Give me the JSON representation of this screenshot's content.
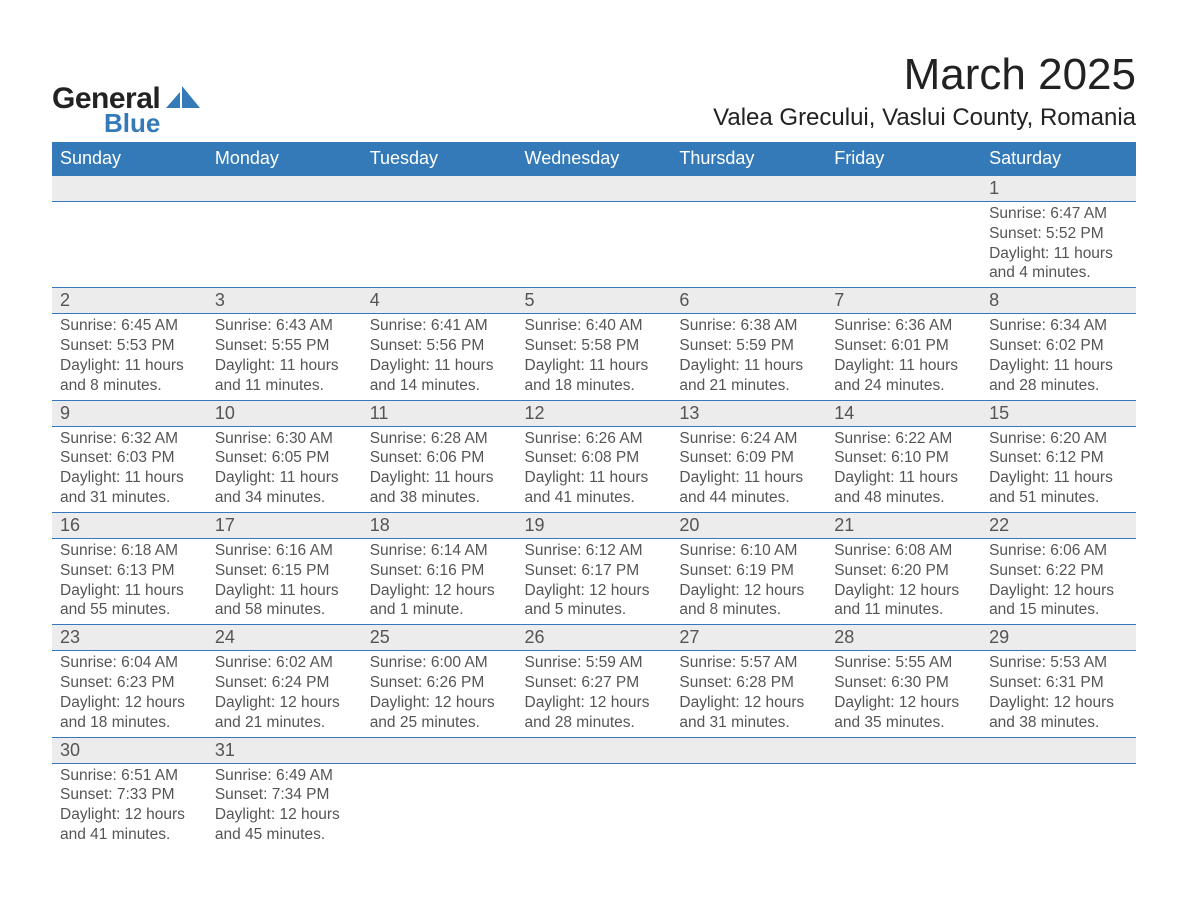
{
  "logo": {
    "text_general": "General",
    "text_blue": "Blue"
  },
  "title": "March 2025",
  "location": "Valea Grecului, Vaslui County, Romania",
  "colors": {
    "header_bg": "#357ab8",
    "header_text": "#ffffff",
    "daynum_bg": "#ececec",
    "row_border": "#357ab8",
    "body_text": "#555555",
    "logo_blue": "#357ab8",
    "logo_dark": "#222222",
    "page_bg": "#ffffff"
  },
  "weekdays": [
    "Sunday",
    "Monday",
    "Tuesday",
    "Wednesday",
    "Thursday",
    "Friday",
    "Saturday"
  ],
  "weeks": [
    {
      "days": [
        null,
        null,
        null,
        null,
        null,
        null,
        {
          "n": "1",
          "sunrise": "6:47 AM",
          "sunset": "5:52 PM",
          "daylight": "11 hours and 4 minutes."
        }
      ]
    },
    {
      "days": [
        {
          "n": "2",
          "sunrise": "6:45 AM",
          "sunset": "5:53 PM",
          "daylight": "11 hours and 8 minutes."
        },
        {
          "n": "3",
          "sunrise": "6:43 AM",
          "sunset": "5:55 PM",
          "daylight": "11 hours and 11 minutes."
        },
        {
          "n": "4",
          "sunrise": "6:41 AM",
          "sunset": "5:56 PM",
          "daylight": "11 hours and 14 minutes."
        },
        {
          "n": "5",
          "sunrise": "6:40 AM",
          "sunset": "5:58 PM",
          "daylight": "11 hours and 18 minutes."
        },
        {
          "n": "6",
          "sunrise": "6:38 AM",
          "sunset": "5:59 PM",
          "daylight": "11 hours and 21 minutes."
        },
        {
          "n": "7",
          "sunrise": "6:36 AM",
          "sunset": "6:01 PM",
          "daylight": "11 hours and 24 minutes."
        },
        {
          "n": "8",
          "sunrise": "6:34 AM",
          "sunset": "6:02 PM",
          "daylight": "11 hours and 28 minutes."
        }
      ]
    },
    {
      "days": [
        {
          "n": "9",
          "sunrise": "6:32 AM",
          "sunset": "6:03 PM",
          "daylight": "11 hours and 31 minutes."
        },
        {
          "n": "10",
          "sunrise": "6:30 AM",
          "sunset": "6:05 PM",
          "daylight": "11 hours and 34 minutes."
        },
        {
          "n": "11",
          "sunrise": "6:28 AM",
          "sunset": "6:06 PM",
          "daylight": "11 hours and 38 minutes."
        },
        {
          "n": "12",
          "sunrise": "6:26 AM",
          "sunset": "6:08 PM",
          "daylight": "11 hours and 41 minutes."
        },
        {
          "n": "13",
          "sunrise": "6:24 AM",
          "sunset": "6:09 PM",
          "daylight": "11 hours and 44 minutes."
        },
        {
          "n": "14",
          "sunrise": "6:22 AM",
          "sunset": "6:10 PM",
          "daylight": "11 hours and 48 minutes."
        },
        {
          "n": "15",
          "sunrise": "6:20 AM",
          "sunset": "6:12 PM",
          "daylight": "11 hours and 51 minutes."
        }
      ]
    },
    {
      "days": [
        {
          "n": "16",
          "sunrise": "6:18 AM",
          "sunset": "6:13 PM",
          "daylight": "11 hours and 55 minutes."
        },
        {
          "n": "17",
          "sunrise": "6:16 AM",
          "sunset": "6:15 PM",
          "daylight": "11 hours and 58 minutes."
        },
        {
          "n": "18",
          "sunrise": "6:14 AM",
          "sunset": "6:16 PM",
          "daylight": "12 hours and 1 minute."
        },
        {
          "n": "19",
          "sunrise": "6:12 AM",
          "sunset": "6:17 PM",
          "daylight": "12 hours and 5 minutes."
        },
        {
          "n": "20",
          "sunrise": "6:10 AM",
          "sunset": "6:19 PM",
          "daylight": "12 hours and 8 minutes."
        },
        {
          "n": "21",
          "sunrise": "6:08 AM",
          "sunset": "6:20 PM",
          "daylight": "12 hours and 11 minutes."
        },
        {
          "n": "22",
          "sunrise": "6:06 AM",
          "sunset": "6:22 PM",
          "daylight": "12 hours and 15 minutes."
        }
      ]
    },
    {
      "days": [
        {
          "n": "23",
          "sunrise": "6:04 AM",
          "sunset": "6:23 PM",
          "daylight": "12 hours and 18 minutes."
        },
        {
          "n": "24",
          "sunrise": "6:02 AM",
          "sunset": "6:24 PM",
          "daylight": "12 hours and 21 minutes."
        },
        {
          "n": "25",
          "sunrise": "6:00 AM",
          "sunset": "6:26 PM",
          "daylight": "12 hours and 25 minutes."
        },
        {
          "n": "26",
          "sunrise": "5:59 AM",
          "sunset": "6:27 PM",
          "daylight": "12 hours and 28 minutes."
        },
        {
          "n": "27",
          "sunrise": "5:57 AM",
          "sunset": "6:28 PM",
          "daylight": "12 hours and 31 minutes."
        },
        {
          "n": "28",
          "sunrise": "5:55 AM",
          "sunset": "6:30 PM",
          "daylight": "12 hours and 35 minutes."
        },
        {
          "n": "29",
          "sunrise": "5:53 AM",
          "sunset": "6:31 PM",
          "daylight": "12 hours and 38 minutes."
        }
      ]
    },
    {
      "days": [
        {
          "n": "30",
          "sunrise": "6:51 AM",
          "sunset": "7:33 PM",
          "daylight": "12 hours and 41 minutes."
        },
        {
          "n": "31",
          "sunrise": "6:49 AM",
          "sunset": "7:34 PM",
          "daylight": "12 hours and 45 minutes."
        },
        null,
        null,
        null,
        null,
        null
      ]
    }
  ],
  "labels": {
    "sunrise_prefix": "Sunrise: ",
    "sunset_prefix": "Sunset: ",
    "daylight_prefix": "Daylight: "
  }
}
